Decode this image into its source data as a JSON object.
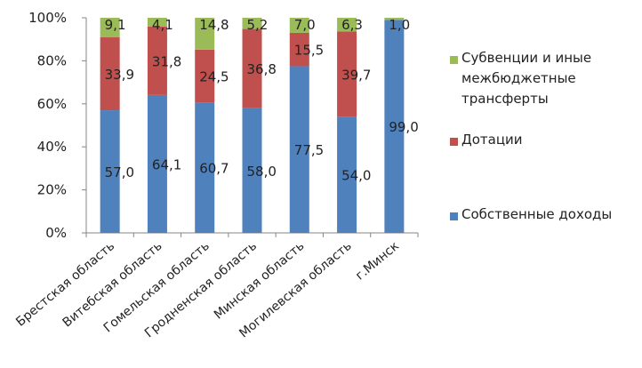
{
  "chart_data": {
    "type": "bar",
    "stacked": true,
    "percent": true,
    "categories": [
      "Брестская область",
      "Витебская область",
      "Гомельская область",
      "Гродненская область",
      "Минская область",
      "Могилевская область",
      "г.Минск"
    ],
    "series": [
      {
        "name": "Собственные доходы",
        "values": [
          57.0,
          64.1,
          60.7,
          58.0,
          77.5,
          54.0,
          99.0
        ],
        "labels": [
          "57,0",
          "64,1",
          "60,7",
          "58,0",
          "77,5",
          "54,0",
          "99,0"
        ],
        "color": "#4F81BD"
      },
      {
        "name": "Дотации",
        "values": [
          33.9,
          31.8,
          24.5,
          36.8,
          15.5,
          39.7,
          0
        ],
        "labels": [
          "33,9",
          "31,8",
          "24,5",
          "36,8",
          "15,5",
          "39,7",
          ""
        ],
        "color": "#C0504D"
      },
      {
        "name": "Субвенции и иные межбюджетные трансферты",
        "values": [
          9.1,
          4.1,
          14.8,
          5.2,
          7.0,
          6.3,
          1.0
        ],
        "labels": [
          "9,1",
          "4,1",
          "14,8",
          "5,2",
          "7,0",
          "6,3",
          "1,0"
        ],
        "color": "#9BBB59"
      }
    ],
    "ylim": [
      0,
      100
    ],
    "yticks": [
      "0%",
      "20%",
      "40%",
      "60%",
      "80%",
      "100%"
    ],
    "grid": false,
    "legend_position": "right"
  },
  "legend": {
    "items": [
      {
        "label_lines": [
          "Субвенции и иные",
          "межбюджетные",
          "трансферты"
        ],
        "color": "#9BBB59"
      },
      {
        "label_lines": [
          "Дотации"
        ],
        "color": "#C0504D"
      },
      {
        "label_lines": [
          "Собственные доходы"
        ],
        "color": "#4F81BD"
      }
    ]
  }
}
